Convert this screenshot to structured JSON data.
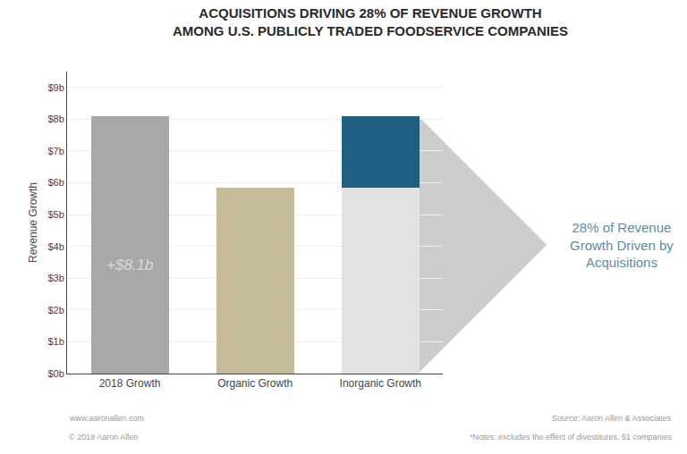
{
  "chart_data": {
    "type": "bar",
    "title": "ACQUISITIONS DRIVING 28% OF REVENUE GROWTH\nAMONG U.S. PUBLICLY TRADED FOODSERVICE COMPANIES",
    "categories": [
      "2018 Growth",
      "Organic Growth",
      "Inorganic Growth"
    ],
    "stacked": true,
    "series": [
      {
        "colors": [
          "#a8a8a8",
          "#c5bb96",
          "#e2e2e2"
        ],
        "values": [
          8.1,
          5.85,
          5.85
        ]
      },
      {
        "color": "#1e5f82",
        "values": [
          null,
          null,
          2.25
        ]
      }
    ],
    "ylabel": "Revenue Growth",
    "ylim": [
      0,
      9.5
    ],
    "yticks": [
      {
        "value": 0,
        "label": "$0b"
      },
      {
        "value": 1,
        "label": "$1b"
      },
      {
        "value": 2,
        "label": "$2b"
      },
      {
        "value": 3,
        "label": "$3b"
      },
      {
        "value": 4,
        "label": "$4b"
      },
      {
        "value": 5,
        "label": "$5b"
      },
      {
        "value": 6,
        "label": "$6b"
      },
      {
        "value": 7,
        "label": "$7b"
      },
      {
        "value": 8,
        "label": "$8b"
      },
      {
        "value": 9,
        "label": "$9b"
      }
    ],
    "grid": true,
    "annotations": [
      "+$8.1b",
      "28% of Revenue\nGrowth Driven by\nAcquisitions",
      "www.aaronallen.com",
      "© 2019 Aaron Allen",
      "Source: Aaron Allen & Associates",
      "*Notes: excludes the effect of divestitures, 51 companies"
    ]
  }
}
